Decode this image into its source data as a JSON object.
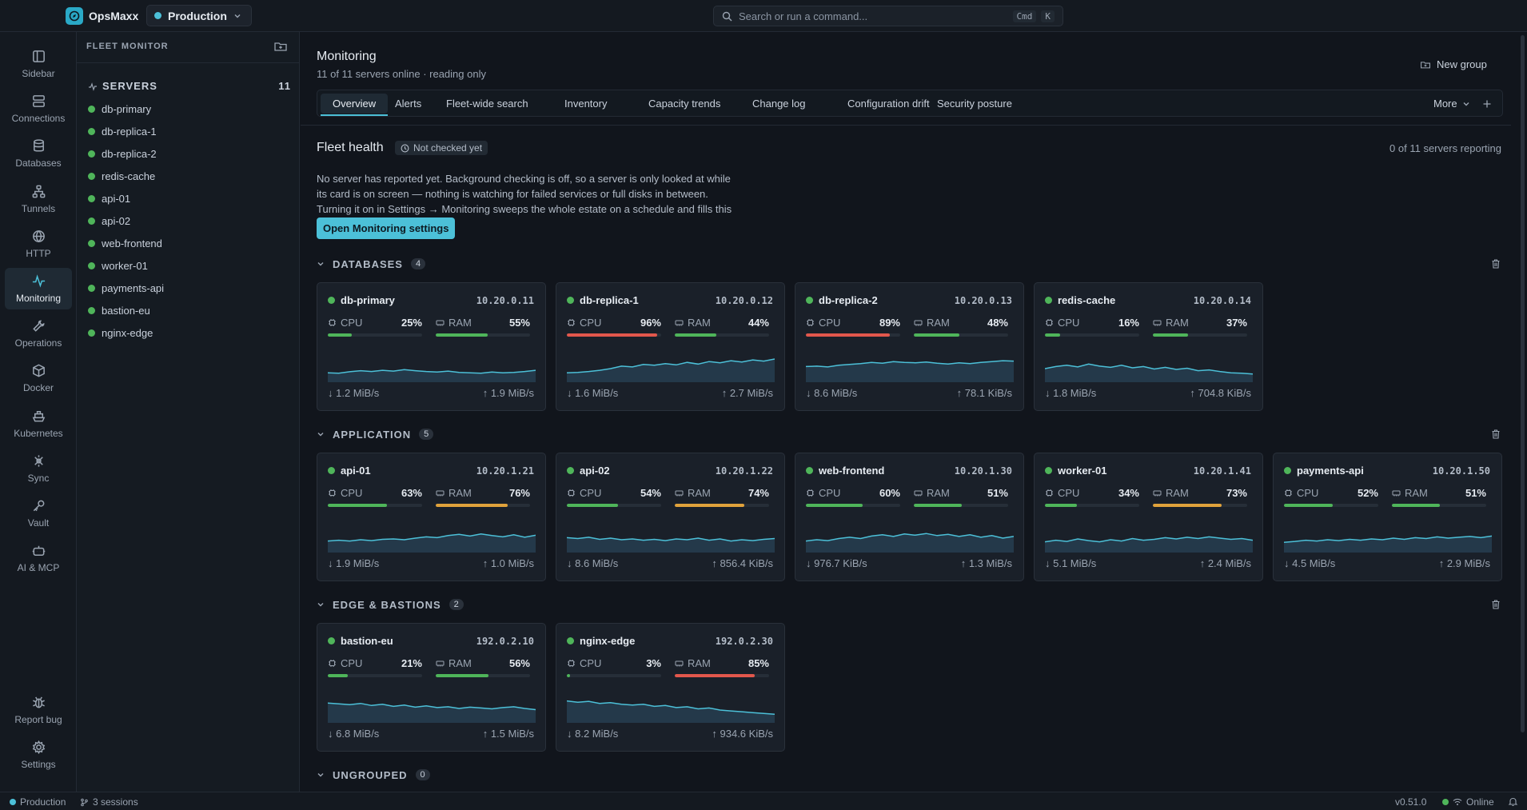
{
  "app": {
    "name": "OpsMaxx",
    "environment": "Production"
  },
  "search": {
    "placeholder": "Search or run a command...",
    "kbd1": "Cmd",
    "kbd2": "K"
  },
  "rail": [
    {
      "label": "Sidebar",
      "icon": "sidebar-icon"
    },
    {
      "label": "Connections",
      "icon": "server-icon"
    },
    {
      "label": "Databases",
      "icon": "database-icon"
    },
    {
      "label": "Tunnels",
      "icon": "network-icon"
    },
    {
      "label": "HTTP",
      "icon": "globe-icon"
    },
    {
      "label": "Monitoring",
      "icon": "activity-icon",
      "active": true
    },
    {
      "label": "Operations",
      "icon": "wrench-icon"
    },
    {
      "label": "Docker",
      "icon": "box-icon"
    },
    {
      "label": "Kubernetes",
      "icon": "ship-icon"
    },
    {
      "label": "Sync",
      "icon": "sync-icon"
    },
    {
      "label": "Vault",
      "icon": "key-icon"
    },
    {
      "label": "AI & MCP",
      "icon": "bot-icon"
    }
  ],
  "rail_bottom": [
    {
      "label": "Report bug",
      "icon": "bug-icon"
    },
    {
      "label": "Settings",
      "icon": "gear-icon"
    }
  ],
  "sidebar": {
    "header": "FLEET MONITOR",
    "group": "SERVERS",
    "group_count": "11",
    "items": [
      "db-primary",
      "db-replica-1",
      "db-replica-2",
      "redis-cache",
      "api-01",
      "api-02",
      "web-frontend",
      "worker-01",
      "payments-api",
      "bastion-eu",
      "nginx-edge"
    ]
  },
  "main": {
    "title": "Monitoring",
    "subtitle": "11 of 11 servers online · reading only",
    "new_group": "New group",
    "tabs": [
      "Overview",
      "Alerts",
      "Fleet-wide search",
      "Inventory",
      "Capacity trends",
      "Change log",
      "Configuration drift",
      "Security posture"
    ],
    "more": "More"
  },
  "fleet_health": {
    "title": "Fleet health",
    "badge": "Not checked yet",
    "reporting": "0 of 11 servers reporting",
    "description": "No server has reported yet. Background checking is off, so a server is only looked at while its card is on screen — nothing is watching for failed services or full disks in between. Turning it on in Settings → Monitoring sweeps the whole estate on a schedule and fills this panel in.",
    "button": "Open Monitoring settings"
  },
  "labels": {
    "cpu": "CPU",
    "ram": "RAM"
  },
  "colors": {
    "accent": "#4cc0d8",
    "ok": "#4fb55a",
    "warn": "#e0a23b",
    "crit": "#e2574c"
  },
  "groups": [
    {
      "name": "DATABASES",
      "count": "4",
      "servers": [
        {
          "name": "db-primary",
          "ip": "10.20.0.11",
          "cpu": "25%",
          "cpu_v": 25,
          "cpu_c": "ok",
          "ram": "55%",
          "ram_v": 55,
          "ram_c": "ok",
          "down": "1.2 MiB/s",
          "up": "1.9 MiB/s",
          "spark": [
            0.3,
            0.28,
            0.35,
            0.4,
            0.36,
            0.42,
            0.38,
            0.45,
            0.4,
            0.36,
            0.34,
            0.38,
            0.32,
            0.3,
            0.28,
            0.34,
            0.3,
            0.32,
            0.36,
            0.42
          ]
        },
        {
          "name": "db-replica-1",
          "ip": "10.20.0.12",
          "cpu": "96%",
          "cpu_v": 96,
          "cpu_c": "crit",
          "ram": "44%",
          "ram_v": 44,
          "ram_c": "ok",
          "down": "1.6 MiB/s",
          "up": "2.7 MiB/s",
          "spark": [
            0.3,
            0.32,
            0.36,
            0.42,
            0.5,
            0.62,
            0.58,
            0.7,
            0.66,
            0.74,
            0.68,
            0.8,
            0.72,
            0.84,
            0.78,
            0.88,
            0.82,
            0.92,
            0.86,
            0.96
          ]
        },
        {
          "name": "db-replica-2",
          "ip": "10.20.0.13",
          "cpu": "89%",
          "cpu_v": 89,
          "cpu_c": "crit",
          "ram": "48%",
          "ram_v": 48,
          "ram_c": "ok",
          "down": "8.6 MiB/s",
          "up": "78.1 KiB/s",
          "spark": [
            0.6,
            0.62,
            0.58,
            0.66,
            0.7,
            0.74,
            0.8,
            0.76,
            0.84,
            0.8,
            0.78,
            0.82,
            0.76,
            0.72,
            0.78,
            0.74,
            0.8,
            0.84,
            0.88,
            0.86
          ]
        },
        {
          "name": "redis-cache",
          "ip": "10.20.0.14",
          "cpu": "16%",
          "cpu_v": 16,
          "cpu_c": "ok",
          "ram": "37%",
          "ram_v": 37,
          "ram_c": "ok",
          "down": "1.8 MiB/s",
          "up": "704.8 KiB/s",
          "spark": [
            0.5,
            0.6,
            0.66,
            0.58,
            0.72,
            0.62,
            0.56,
            0.66,
            0.54,
            0.6,
            0.48,
            0.56,
            0.46,
            0.52,
            0.4,
            0.44,
            0.36,
            0.3,
            0.28,
            0.24
          ]
        }
      ]
    },
    {
      "name": "APPLICATION",
      "count": "5",
      "servers": [
        {
          "name": "api-01",
          "ip": "10.20.1.21",
          "cpu": "63%",
          "cpu_v": 63,
          "cpu_c": "ok",
          "ram": "76%",
          "ram_v": 76,
          "ram_c": "warn",
          "down": "1.9 MiB/s",
          "up": "1.0 MiB/s",
          "spark": [
            0.4,
            0.44,
            0.4,
            0.46,
            0.42,
            0.48,
            0.5,
            0.46,
            0.54,
            0.6,
            0.56,
            0.66,
            0.72,
            0.64,
            0.74,
            0.66,
            0.6,
            0.7,
            0.58,
            0.68
          ]
        },
        {
          "name": "api-02",
          "ip": "10.20.1.22",
          "cpu": "54%",
          "cpu_v": 54,
          "cpu_c": "ok",
          "ram": "74%",
          "ram_v": 74,
          "ram_c": "warn",
          "down": "8.6 MiB/s",
          "up": "856.4 KiB/s",
          "spark": [
            0.56,
            0.52,
            0.58,
            0.48,
            0.54,
            0.46,
            0.5,
            0.44,
            0.48,
            0.42,
            0.5,
            0.46,
            0.54,
            0.44,
            0.5,
            0.4,
            0.46,
            0.42,
            0.48,
            0.52
          ]
        },
        {
          "name": "web-frontend",
          "ip": "10.20.1.30",
          "cpu": "60%",
          "cpu_v": 60,
          "cpu_c": "ok",
          "ram": "51%",
          "ram_v": 51,
          "ram_c": "ok",
          "down": "976.7 KiB/s",
          "up": "1.3 MiB/s",
          "spark": [
            0.4,
            0.46,
            0.42,
            0.52,
            0.58,
            0.52,
            0.64,
            0.7,
            0.62,
            0.74,
            0.68,
            0.76,
            0.66,
            0.72,
            0.62,
            0.7,
            0.58,
            0.66,
            0.54,
            0.62
          ]
        },
        {
          "name": "worker-01",
          "ip": "10.20.1.41",
          "cpu": "34%",
          "cpu_v": 34,
          "cpu_c": "ok",
          "ram": "73%",
          "ram_v": 73,
          "ram_c": "warn",
          "down": "5.1 MiB/s",
          "up": "2.4 MiB/s",
          "spark": [
            0.36,
            0.44,
            0.38,
            0.5,
            0.42,
            0.36,
            0.46,
            0.4,
            0.52,
            0.44,
            0.48,
            0.56,
            0.5,
            0.58,
            0.52,
            0.6,
            0.54,
            0.48,
            0.52,
            0.44
          ]
        },
        {
          "name": "payments-api",
          "ip": "10.20.1.50",
          "cpu": "52%",
          "cpu_v": 52,
          "cpu_c": "ok",
          "ram": "51%",
          "ram_v": 51,
          "ram_c": "ok",
          "down": "4.5 MiB/s",
          "up": "2.9 MiB/s",
          "spark": [
            0.34,
            0.38,
            0.44,
            0.4,
            0.46,
            0.42,
            0.48,
            0.44,
            0.5,
            0.46,
            0.54,
            0.48,
            0.56,
            0.52,
            0.6,
            0.54,
            0.58,
            0.62,
            0.56,
            0.64
          ]
        }
      ]
    },
    {
      "name": "EDGE & BASTIONS",
      "count": "2",
      "servers": [
        {
          "name": "bastion-eu",
          "ip": "192.0.2.10",
          "cpu": "21%",
          "cpu_v": 21,
          "cpu_c": "ok",
          "ram": "56%",
          "ram_v": 56,
          "ram_c": "ok",
          "down": "6.8 MiB/s",
          "up": "1.5 MiB/s",
          "spark": [
            0.8,
            0.76,
            0.72,
            0.78,
            0.68,
            0.74,
            0.64,
            0.7,
            0.6,
            0.66,
            0.58,
            0.62,
            0.54,
            0.6,
            0.56,
            0.52,
            0.58,
            0.62,
            0.54,
            0.48
          ]
        },
        {
          "name": "nginx-edge",
          "ip": "192.0.2.30",
          "cpu": "3%",
          "cpu_v": 3,
          "cpu_c": "ok",
          "ram": "85%",
          "ram_v": 85,
          "ram_c": "crit",
          "down": "8.2 MiB/s",
          "up": "934.6 KiB/s",
          "spark": [
            0.9,
            0.84,
            0.88,
            0.78,
            0.82,
            0.74,
            0.7,
            0.74,
            0.64,
            0.68,
            0.58,
            0.62,
            0.52,
            0.56,
            0.46,
            0.42,
            0.38,
            0.34,
            0.3,
            0.26
          ]
        }
      ]
    },
    {
      "name": "UNGROUPED",
      "count": "0",
      "servers": []
    }
  ],
  "status": {
    "env": "Production",
    "sessions": "3 sessions",
    "version": "v0.51.0",
    "online": "Online"
  }
}
